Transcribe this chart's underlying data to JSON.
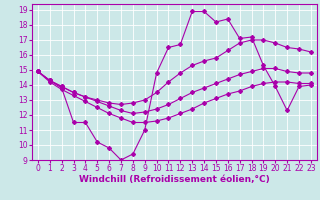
{
  "background_color": "#cce8e8",
  "line_color": "#aa00aa",
  "xlim": [
    -0.5,
    23.5
  ],
  "ylim": [
    9,
    19.4
  ],
  "xticks": [
    0,
    1,
    2,
    3,
    4,
    5,
    6,
    7,
    8,
    9,
    10,
    11,
    12,
    13,
    14,
    15,
    16,
    17,
    18,
    19,
    20,
    21,
    22,
    23
  ],
  "yticks": [
    9,
    10,
    11,
    12,
    13,
    14,
    15,
    16,
    17,
    18,
    19
  ],
  "xlabel": "Windchill (Refroidissement éolien,°C)",
  "tick_fontsize": 5.5,
  "xlabel_fontsize": 6.5,
  "line1_x": [
    0,
    1,
    2,
    3,
    4,
    5,
    6,
    7,
    8,
    9,
    10,
    11,
    12,
    13,
    14,
    15,
    16,
    17,
    18,
    19,
    20,
    21,
    22,
    23
  ],
  "line1_y": [
    14.9,
    14.3,
    13.8,
    11.5,
    11.5,
    10.2,
    9.8,
    9.0,
    9.4,
    11.0,
    14.8,
    16.5,
    16.7,
    18.9,
    18.9,
    18.2,
    18.4,
    17.1,
    17.2,
    15.3,
    13.9,
    12.3,
    13.9,
    14.0
  ],
  "line2_x": [
    0,
    1,
    2,
    3,
    4,
    5,
    6,
    7,
    8,
    9,
    10,
    11,
    12,
    13,
    14,
    15,
    16,
    17,
    18,
    19,
    20,
    21,
    22,
    23
  ],
  "line2_y": [
    14.9,
    14.3,
    13.9,
    13.5,
    13.2,
    13.0,
    12.8,
    12.7,
    12.8,
    13.0,
    13.5,
    14.2,
    14.8,
    15.3,
    15.6,
    15.8,
    16.3,
    16.8,
    17.0,
    17.0,
    16.8,
    16.5,
    16.4,
    16.2
  ],
  "line3_x": [
    0,
    1,
    2,
    3,
    4,
    5,
    6,
    7,
    8,
    9,
    10,
    11,
    12,
    13,
    14,
    15,
    16,
    17,
    18,
    19,
    20,
    21,
    22,
    23
  ],
  "line3_y": [
    14.9,
    14.3,
    13.9,
    13.5,
    13.2,
    12.9,
    12.6,
    12.3,
    12.1,
    12.2,
    12.4,
    12.7,
    13.1,
    13.5,
    13.8,
    14.1,
    14.4,
    14.7,
    14.9,
    15.1,
    15.1,
    14.9,
    14.8,
    14.8
  ],
  "line4_x": [
    0,
    1,
    2,
    3,
    4,
    5,
    6,
    7,
    8,
    9,
    10,
    11,
    12,
    13,
    14,
    15,
    16,
    17,
    18,
    19,
    20,
    21,
    22,
    23
  ],
  "line4_y": [
    14.9,
    14.2,
    13.7,
    13.3,
    12.9,
    12.5,
    12.1,
    11.8,
    11.5,
    11.5,
    11.6,
    11.8,
    12.1,
    12.4,
    12.8,
    13.1,
    13.4,
    13.6,
    13.9,
    14.1,
    14.2,
    14.2,
    14.1,
    14.1
  ],
  "marker": "D",
  "markersize": 2.0,
  "linewidth": 0.8
}
